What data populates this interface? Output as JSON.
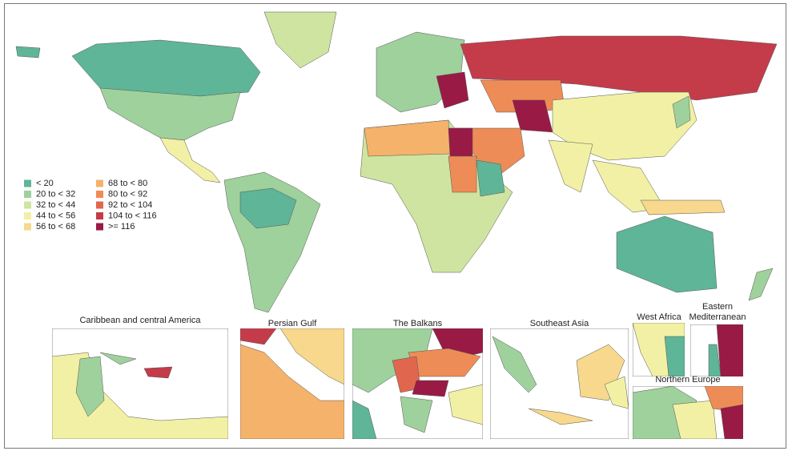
{
  "legend": {
    "items": [
      {
        "label": "< 20",
        "color": "#5fb597"
      },
      {
        "label": "20 to < 32",
        "color": "#9fd19c"
      },
      {
        "label": "32 to < 44",
        "color": "#cfe4a0"
      },
      {
        "label": "44 to < 56",
        "color": "#f2f0a4"
      },
      {
        "label": "56 to < 68",
        "color": "#f7d88c"
      },
      {
        "label": "68 to < 80",
        "color": "#f4b26b"
      },
      {
        "label": "80 to < 92",
        "color": "#ee8c57"
      },
      {
        "label": "92 to < 104",
        "color": "#e0674e"
      },
      {
        "label": "104 to < 116",
        "color": "#c43c4a"
      },
      {
        "label": ">= 116",
        "color": "#991a45"
      }
    ]
  },
  "insets": [
    {
      "title": "Caribbean and central America"
    },
    {
      "title": "Persian Gulf"
    },
    {
      "title": "The Balkans"
    },
    {
      "title": "Southeast Asia"
    },
    {
      "title": "West Africa"
    },
    {
      "title": "Eastern Mediterranean"
    },
    {
      "title": "Northern Europe"
    }
  ]
}
